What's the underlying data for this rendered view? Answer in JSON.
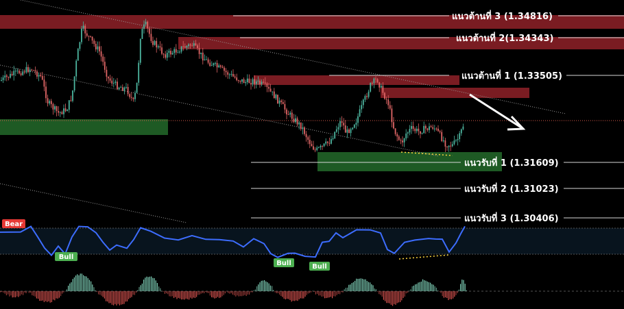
{
  "chart_data": {
    "type": "candlestick",
    "y_range": [
      1.2985,
      1.3505
    ],
    "levels": [
      {
        "id": "resistance-3",
        "label": "แนวต้านที่ 3 (1.34816)",
        "price": 1.34816,
        "kind": "resistance"
      },
      {
        "id": "resistance-2",
        "label": "แนวต้านที่ 2(1.34343)",
        "price": 1.34343,
        "kind": "resistance"
      },
      {
        "id": "resistance-1",
        "label": "แนวต้านที่ 1 (1.33505)",
        "price": 1.33505,
        "kind": "resistance"
      },
      {
        "id": "support-1",
        "label": "แนวรับที่ 1 (1.31609)",
        "price": 1.31609,
        "kind": "support"
      },
      {
        "id": "support-2",
        "label": "แนวรับที่ 2 (1.31023)",
        "price": 1.31023,
        "kind": "support"
      },
      {
        "id": "support-3",
        "label": "แนวรับที่ 3 (1.30406)",
        "price": 1.30406,
        "kind": "support"
      }
    ],
    "oscillator_tags": [
      {
        "text": "Bear",
        "kind": "bear"
      },
      {
        "text": "Bull",
        "kind": "bull"
      },
      {
        "text": "Bull",
        "kind": "bull"
      },
      {
        "text": "Bull",
        "kind": "bull"
      }
    ],
    "colors": {
      "up": "#4db6a0",
      "down": "#e06666",
      "resistance_zone": "#7a1c22",
      "support_zone": "#1e5a24",
      "oscillator_line": "#3d6dff",
      "bull_tag": "#4caf50",
      "bear_tag": "#e53935",
      "divergence": "#ffd740"
    }
  }
}
